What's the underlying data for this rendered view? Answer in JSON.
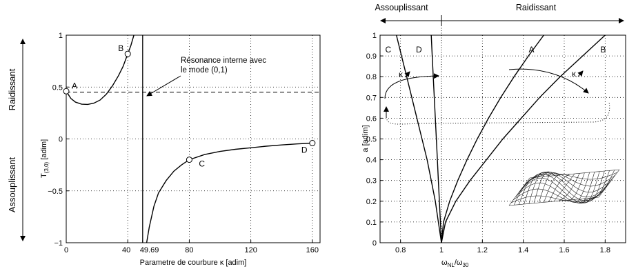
{
  "chart_data": [
    {
      "type": "line",
      "xlabel": "Parametre de courbure κ [adim]",
      "ylabel": "T(3,0) [adim]",
      "ylabel_main": "T",
      "ylabel_sub": "(3,0)",
      "ylabel_unit": " [adim]",
      "xlim": [
        0,
        165
      ],
      "ylim": [
        -1,
        1
      ],
      "grid": true,
      "xticks": [
        {
          "value": 0,
          "label": "0"
        },
        {
          "value": 40,
          "label": "40"
        },
        {
          "value": 49.69,
          "label": "49.69"
        },
        {
          "value": 80,
          "label": "80"
        },
        {
          "value": 120,
          "label": "120"
        },
        {
          "value": 160,
          "label": "160"
        }
      ],
      "yticks": [
        {
          "value": -1,
          "label": "−1"
        },
        {
          "value": -0.5,
          "label": "−0.5"
        },
        {
          "value": 0,
          "label": "0"
        },
        {
          "value": 0.5,
          "label": "0.5"
        },
        {
          "value": 1,
          "label": "1"
        }
      ],
      "side_labels": {
        "top": "Raidissant",
        "bottom": "Assouplissant"
      },
      "annotation": {
        "text_line1": "Résonance interne avec",
        "text_line2": "le mode (0,1)",
        "arrow_to": [
          49.69,
          0.6
        ]
      },
      "vertical_line_x": 49.69,
      "dashed_hline_y": 0.45,
      "series": [
        {
          "points": [
            [
              0,
              0.46
            ],
            [
              3,
              0.39
            ],
            [
              6,
              0.355
            ],
            [
              10,
              0.335
            ],
            [
              14,
              0.333
            ],
            [
              18,
              0.345
            ],
            [
              22,
              0.375
            ],
            [
              26,
              0.43
            ],
            [
              30,
              0.51
            ],
            [
              34,
              0.61
            ],
            [
              37,
              0.7
            ],
            [
              40,
              0.82
            ],
            [
              42,
              0.9
            ],
            [
              44,
              1.0
            ]
          ]
        },
        {
          "points": [
            [
              52.3,
              -1.0
            ],
            [
              54,
              -0.85
            ],
            [
              57,
              -0.65
            ],
            [
              60,
              -0.52
            ],
            [
              65,
              -0.4
            ],
            [
              70,
              -0.31
            ],
            [
              75,
              -0.25
            ],
            [
              80,
              -0.2
            ],
            [
              90,
              -0.15
            ],
            [
              100,
              -0.12
            ],
            [
              110,
              -0.1
            ],
            [
              120,
              -0.085
            ],
            [
              130,
              -0.07
            ],
            [
              140,
              -0.058
            ],
            [
              150,
              -0.048
            ],
            [
              160,
              -0.04
            ]
          ]
        }
      ],
      "points": [
        {
          "label": "A",
          "x": 0,
          "y": 0.46
        },
        {
          "label": "B",
          "x": 40,
          "y": 0.82
        },
        {
          "label": "C",
          "x": 80,
          "y": -0.2
        },
        {
          "label": "D",
          "x": 160,
          "y": -0.04
        }
      ]
    },
    {
      "type": "line",
      "xlabel": "ωNL/ω30",
      "xlabel_parts": {
        "omega1": "ω",
        "sub1": "NL",
        "slash": "/ω",
        "sub2": "30"
      },
      "ylabel": "a [adim]",
      "xlim": [
        0.7,
        1.9
      ],
      "ylim": [
        0,
        1
      ],
      "grid": true,
      "xticks": [
        {
          "value": 0.8,
          "label": "0.8"
        },
        {
          "value": 1,
          "label": "1"
        },
        {
          "value": 1.2,
          "label": "1.2"
        },
        {
          "value": 1.4,
          "label": "1.4"
        },
        {
          "value": 1.6,
          "label": "1.6"
        },
        {
          "value": 1.8,
          "label": "1.8"
        }
      ],
      "yticks": [
        {
          "value": 0,
          "label": "0"
        },
        {
          "value": 0.1,
          "label": "0.1"
        },
        {
          "value": 0.2,
          "label": "0.2"
        },
        {
          "value": 0.3,
          "label": "0.3"
        },
        {
          "value": 0.4,
          "label": "0.4"
        },
        {
          "value": 0.5,
          "label": "0.5"
        },
        {
          "value": 0.6,
          "label": "0.6"
        },
        {
          "value": 0.7,
          "label": "0.7"
        },
        {
          "value": 0.8,
          "label": "0.8"
        },
        {
          "value": 0.9,
          "label": "0.9"
        },
        {
          "value": 1,
          "label": "1"
        }
      ],
      "top_labels": {
        "left": "Assouplissant",
        "right": "Raidissant"
      },
      "kappa_label": "κ",
      "series": [
        {
          "name": "A",
          "points": [
            [
              1,
              0
            ],
            [
              1.01,
              0.1
            ],
            [
              1.04,
              0.2
            ],
            [
              1.08,
              0.3
            ],
            [
              1.125,
              0.4
            ],
            [
              1.175,
              0.5
            ],
            [
              1.23,
              0.6
            ],
            [
              1.29,
              0.7
            ],
            [
              1.355,
              0.8
            ],
            [
              1.425,
              0.9
            ],
            [
              1.5,
              1.0
            ]
          ]
        },
        {
          "name": "B",
          "points": [
            [
              1,
              0
            ],
            [
              1.02,
              0.1
            ],
            [
              1.07,
              0.2
            ],
            [
              1.14,
              0.3
            ],
            [
              1.22,
              0.4
            ],
            [
              1.3,
              0.5
            ],
            [
              1.39,
              0.6
            ],
            [
              1.48,
              0.7
            ],
            [
              1.58,
              0.8
            ],
            [
              1.69,
              0.9
            ],
            [
              1.8,
              1.0
            ]
          ]
        },
        {
          "name": "C",
          "points": [
            [
              1,
              0
            ],
            [
              0.985,
              0.1
            ],
            [
              0.97,
              0.2
            ],
            [
              0.95,
              0.3
            ],
            [
              0.93,
              0.4
            ],
            [
              0.905,
              0.5
            ],
            [
              0.88,
              0.6
            ],
            [
              0.855,
              0.7
            ],
            [
              0.83,
              0.8
            ],
            [
              0.805,
              0.9
            ],
            [
              0.78,
              1.0
            ]
          ]
        },
        {
          "name": "D",
          "points": [
            [
              1,
              0
            ],
            [
              0.995,
              0.1
            ],
            [
              0.99,
              0.2
            ],
            [
              0.985,
              0.3
            ],
            [
              0.98,
              0.4
            ],
            [
              0.975,
              0.5
            ],
            [
              0.97,
              0.6
            ],
            [
              0.965,
              0.7
            ],
            [
              0.96,
              0.8
            ],
            [
              0.955,
              0.9
            ],
            [
              0.95,
              1.0
            ]
          ]
        }
      ],
      "labels": [
        {
          "text": "C",
          "x": 0.74,
          "y": 0.93
        },
        {
          "text": "D",
          "x": 0.89,
          "y": 0.93
        },
        {
          "text": "A",
          "x": 1.44,
          "y": 0.93
        },
        {
          "text": "B",
          "x": 1.79,
          "y": 0.93
        }
      ]
    }
  ]
}
